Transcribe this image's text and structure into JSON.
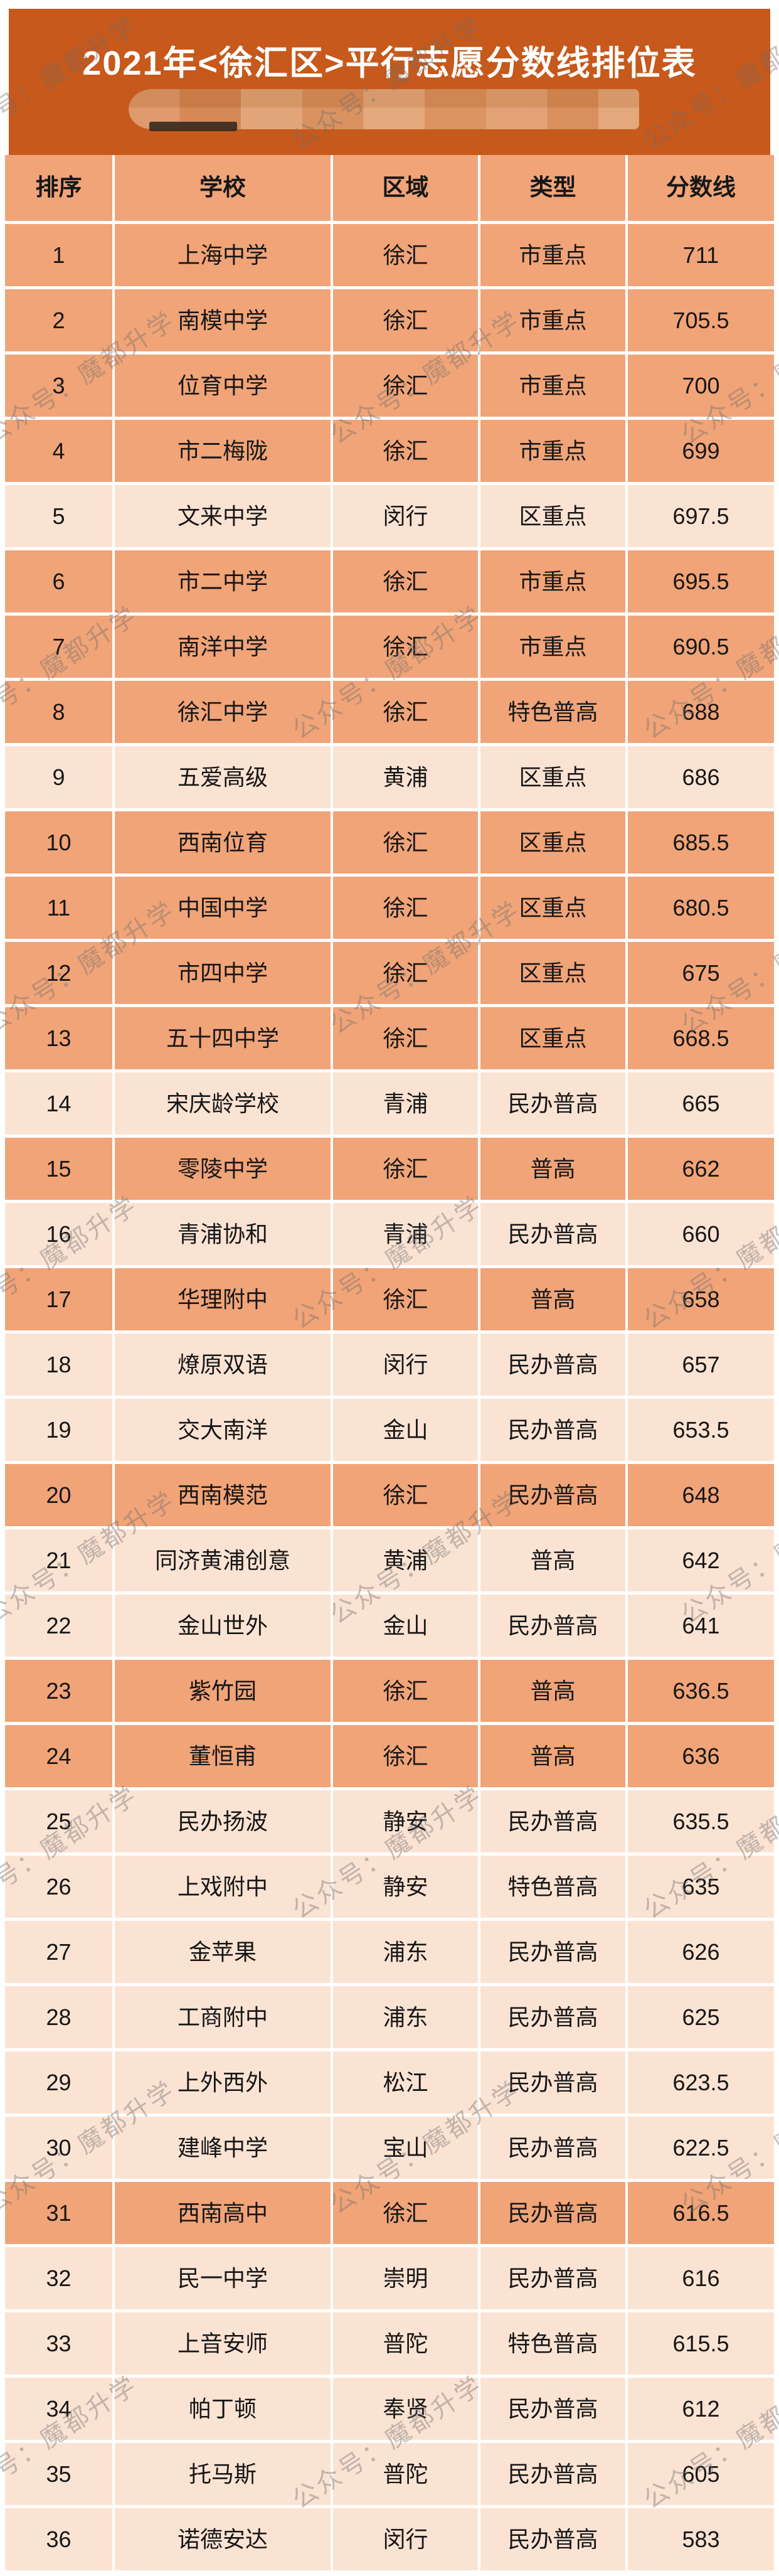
{
  "page": {
    "title": "2021年<徐汇区>平行志愿分数线排位表"
  },
  "watermark": {
    "text": "公众号：魔都升学"
  },
  "colors": {
    "banner_bg": "#c6591b",
    "title_text": "#ffffff",
    "highlight_row_bg": "#f0a478",
    "normal_row_bg": "#fbe3d3",
    "cell_text": "#161616",
    "watermark_gray": "#6e6e6e"
  },
  "chart_data": {
    "type": "table",
    "title": "2021年<徐汇区>平行志愿分数线排位表",
    "columns": [
      "排序",
      "学校",
      "区域",
      "类型",
      "分数线"
    ],
    "highlight_district": "徐汇",
    "rows": [
      {
        "rank": 1,
        "school": "上海中学",
        "district": "徐汇",
        "type": "市重点",
        "score": 711,
        "highlight": true
      },
      {
        "rank": 2,
        "school": "南模中学",
        "district": "徐汇",
        "type": "市重点",
        "score": 705.5,
        "highlight": true
      },
      {
        "rank": 3,
        "school": "位育中学",
        "district": "徐汇",
        "type": "市重点",
        "score": 700,
        "highlight": true
      },
      {
        "rank": 4,
        "school": "市二梅陇",
        "district": "徐汇",
        "type": "市重点",
        "score": 699,
        "highlight": true
      },
      {
        "rank": 5,
        "school": "文来中学",
        "district": "闵行",
        "type": "区重点",
        "score": 697.5,
        "highlight": false
      },
      {
        "rank": 6,
        "school": "市二中学",
        "district": "徐汇",
        "type": "市重点",
        "score": 695.5,
        "highlight": true
      },
      {
        "rank": 7,
        "school": "南洋中学",
        "district": "徐汇",
        "type": "市重点",
        "score": 690.5,
        "highlight": true
      },
      {
        "rank": 8,
        "school": "徐汇中学",
        "district": "徐汇",
        "type": "特色普高",
        "score": 688,
        "highlight": true
      },
      {
        "rank": 9,
        "school": "五爱高级",
        "district": "黄浦",
        "type": "区重点",
        "score": 686,
        "highlight": false
      },
      {
        "rank": 10,
        "school": "西南位育",
        "district": "徐汇",
        "type": "区重点",
        "score": 685.5,
        "highlight": true
      },
      {
        "rank": 11,
        "school": "中国中学",
        "district": "徐汇",
        "type": "区重点",
        "score": 680.5,
        "highlight": true
      },
      {
        "rank": 12,
        "school": "市四中学",
        "district": "徐汇",
        "type": "区重点",
        "score": 675,
        "highlight": true
      },
      {
        "rank": 13,
        "school": "五十四中学",
        "district": "徐汇",
        "type": "区重点",
        "score": 668.5,
        "highlight": true
      },
      {
        "rank": 14,
        "school": "宋庆龄学校",
        "district": "青浦",
        "type": "民办普高",
        "score": 665,
        "highlight": false
      },
      {
        "rank": 15,
        "school": "零陵中学",
        "district": "徐汇",
        "type": "普高",
        "score": 662,
        "highlight": true
      },
      {
        "rank": 16,
        "school": "青浦协和",
        "district": "青浦",
        "type": "民办普高",
        "score": 660,
        "highlight": false
      },
      {
        "rank": 17,
        "school": "华理附中",
        "district": "徐汇",
        "type": "普高",
        "score": 658,
        "highlight": true
      },
      {
        "rank": 18,
        "school": "燎原双语",
        "district": "闵行",
        "type": "民办普高",
        "score": 657,
        "highlight": false
      },
      {
        "rank": 19,
        "school": "交大南洋",
        "district": "金山",
        "type": "民办普高",
        "score": 653.5,
        "highlight": false
      },
      {
        "rank": 20,
        "school": "西南模范",
        "district": "徐汇",
        "type": "民办普高",
        "score": 648,
        "highlight": true
      },
      {
        "rank": 21,
        "school": "同济黄浦创意",
        "district": "黄浦",
        "type": "普高",
        "score": 642,
        "highlight": false
      },
      {
        "rank": 22,
        "school": "金山世外",
        "district": "金山",
        "type": "民办普高",
        "score": 641,
        "highlight": false
      },
      {
        "rank": 23,
        "school": "紫竹园",
        "district": "徐汇",
        "type": "普高",
        "score": 636.5,
        "highlight": true
      },
      {
        "rank": 24,
        "school": "董恒甫",
        "district": "徐汇",
        "type": "普高",
        "score": 636,
        "highlight": true
      },
      {
        "rank": 25,
        "school": "民办扬波",
        "district": "静安",
        "type": "民办普高",
        "score": 635.5,
        "highlight": false
      },
      {
        "rank": 26,
        "school": "上戏附中",
        "district": "静安",
        "type": "特色普高",
        "score": 635,
        "highlight": false
      },
      {
        "rank": 27,
        "school": "金苹果",
        "district": "浦东",
        "type": "民办普高",
        "score": 626,
        "highlight": false
      },
      {
        "rank": 28,
        "school": "工商附中",
        "district": "浦东",
        "type": "民办普高",
        "score": 625,
        "highlight": false
      },
      {
        "rank": 29,
        "school": "上外西外",
        "district": "松江",
        "type": "民办普高",
        "score": 623.5,
        "highlight": false
      },
      {
        "rank": 30,
        "school": "建峰中学",
        "district": "宝山",
        "type": "民办普高",
        "score": 622.5,
        "highlight": false
      },
      {
        "rank": 31,
        "school": "西南高中",
        "district": "徐汇",
        "type": "民办普高",
        "score": 616.5,
        "highlight": true
      },
      {
        "rank": 32,
        "school": "民一中学",
        "district": "崇明",
        "type": "民办普高",
        "score": 616,
        "highlight": false
      },
      {
        "rank": 33,
        "school": "上音安师",
        "district": "普陀",
        "type": "特色普高",
        "score": 615.5,
        "highlight": false
      },
      {
        "rank": 34,
        "school": "帕丁顿",
        "district": "奉贤",
        "type": "民办普高",
        "score": 612,
        "highlight": false
      },
      {
        "rank": 35,
        "school": "托马斯",
        "district": "普陀",
        "type": "民办普高",
        "score": 605,
        "highlight": false
      },
      {
        "rank": 36,
        "school": "诺德安达",
        "district": "闵行",
        "type": "民办普高",
        "score": 583,
        "highlight": false
      }
    ]
  }
}
